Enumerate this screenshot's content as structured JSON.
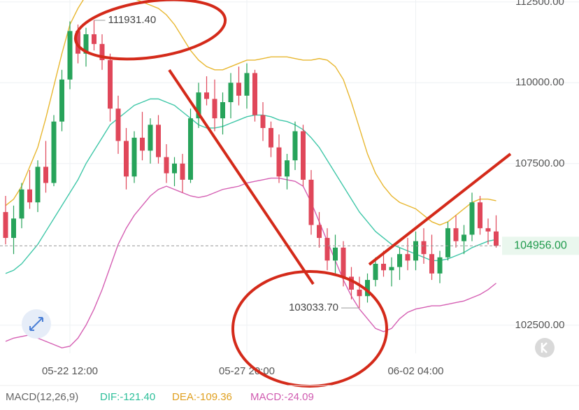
{
  "chart_data": {
    "type": "candlestick",
    "ylim": [
      101630,
      112560
    ],
    "yticks": [
      {
        "value": 112500,
        "label": "112500.00"
      },
      {
        "value": 110000,
        "label": "110000.00"
      },
      {
        "value": 107500,
        "label": "107500.00"
      },
      {
        "value": 102500,
        "label": "102500.00"
      }
    ],
    "categories": [
      null,
      null,
      null,
      null,
      null,
      null,
      null,
      null,
      "05-22 12:00",
      null,
      null,
      null,
      null,
      null,
      null,
      null,
      null,
      null,
      null,
      null,
      null,
      null,
      null,
      null,
      null,
      null,
      null,
      null,
      null,
      null,
      "05-27 20:00",
      null,
      null,
      null,
      null,
      null,
      null,
      null,
      null,
      null,
      null,
      null,
      null,
      null,
      null,
      null,
      null,
      null,
      null,
      null,
      null,
      "06-02 04:00",
      null,
      null,
      null,
      null,
      null,
      null,
      null,
      null,
      null,
      null
    ],
    "open": [
      106000,
      105200,
      105800,
      106700,
      106300,
      107400,
      106900,
      108800,
      110100,
      111600,
      110900,
      111500,
      111200,
      110700,
      109200,
      108200,
      107100,
      108300,
      107900,
      108700,
      107700,
      107200,
      107500,
      107000,
      108900,
      109700,
      109500,
      108900,
      109400,
      110000,
      109600,
      110300,
      109000,
      108600,
      108000,
      107100,
      107600,
      108500,
      107000,
      105600,
      105200,
      104500,
      104900,
      104000,
      103600,
      103400,
      103900,
      104400,
      104200,
      104300,
      104700,
      104500,
      105100,
      104700,
      104100,
      104600,
      105500,
      105100,
      105300,
      106300,
      105500,
      105400
    ],
    "high": [
      106500,
      106200,
      106900,
      107300,
      107600,
      108200,
      109000,
      110400,
      111900,
      111800,
      111700,
      111931.4,
      111500,
      110900,
      109600,
      108600,
      108500,
      109100,
      108900,
      109000,
      108100,
      107700,
      107800,
      109200,
      110000,
      110200,
      110100,
      109700,
      110300,
      110500,
      110600,
      110400,
      109400,
      108800,
      108400,
      107800,
      108800,
      108700,
      107300,
      106000,
      105500,
      105300,
      105100,
      104300,
      104000,
      104100,
      104600,
      104800,
      104600,
      104900,
      105200,
      105400,
      105500,
      105300,
      104800,
      105700,
      105900,
      105600,
      106600,
      106500,
      105800,
      105900
    ],
    "low": [
      105000,
      104700,
      105500,
      106100,
      106000,
      106600,
      106800,
      108500,
      109800,
      110600,
      110500,
      111000,
      110400,
      108800,
      107800,
      106700,
      106900,
      107600,
      107500,
      107500,
      106900,
      106800,
      106600,
      106900,
      108600,
      109300,
      108500,
      108400,
      108900,
      109300,
      109200,
      108800,
      108200,
      107700,
      106900,
      106700,
      107300,
      106800,
      105300,
      104900,
      104200,
      104100,
      103700,
      103300,
      103033.7,
      103200,
      103700,
      104000,
      103700,
      103900,
      104200,
      104200,
      104400,
      103900,
      103800,
      104500,
      104900,
      104700,
      105100,
      105300,
      105000,
      104900
    ],
    "close": [
      105200,
      105800,
      106700,
      106300,
      107400,
      106900,
      108800,
      110100,
      111600,
      110900,
      111500,
      111200,
      110700,
      109200,
      108200,
      107100,
      108300,
      107900,
      108700,
      107700,
      107200,
      107500,
      107000,
      108900,
      109700,
      109500,
      108900,
      109400,
      110000,
      109600,
      110300,
      109000,
      108600,
      108000,
      107100,
      107600,
      108500,
      107000,
      105600,
      105200,
      104500,
      104900,
      104000,
      103600,
      103400,
      103900,
      104400,
      104200,
      104300,
      104700,
      104500,
      105100,
      104700,
      104100,
      104600,
      105500,
      105100,
      105300,
      106300,
      105500,
      105400,
      104956
    ],
    "up_color": "#27a35a",
    "down_color": "#e0475a",
    "bands": [
      {
        "color": "#e8b730",
        "values": [
          106200,
          106400,
          106800,
          107400,
          108000,
          108900,
          109900,
          110900,
          111800,
          112300,
          112700,
          112900,
          113000,
          112900,
          112800,
          112700,
          112600,
          112500,
          112400,
          112300,
          112100,
          111800,
          111400,
          111000,
          110700,
          110500,
          110400,
          110400,
          110500,
          110600,
          110700,
          110700,
          110750,
          110800,
          110800,
          110800,
          110750,
          110700,
          110700,
          110750,
          110700,
          110500,
          110100,
          109400,
          108600,
          107800,
          107200,
          106800,
          106500,
          106300,
          106200,
          106100,
          105900,
          105700,
          105600,
          105700,
          105900,
          106100,
          106300,
          106400,
          106400,
          106350
        ]
      },
      {
        "color": "#3fc7a8",
        "values": [
          104100,
          104200,
          104400,
          104700,
          105000,
          105400,
          105800,
          106200,
          106600,
          107000,
          107500,
          107900,
          108300,
          108700,
          108900,
          109100,
          109300,
          109400,
          109500,
          109500,
          109400,
          109300,
          109100,
          108900,
          108700,
          108600,
          108600,
          108650,
          108750,
          108850,
          108950,
          109000,
          109000,
          108950,
          108850,
          108800,
          108700,
          108550,
          108300,
          108000,
          107600,
          107200,
          106800,
          106400,
          106000,
          105700,
          105400,
          105200,
          105000,
          104900,
          104800,
          104700,
          104600,
          104500,
          104500,
          104550,
          104650,
          104750,
          104900,
          105000,
          105100,
          105150
        ]
      },
      {
        "color": "#d55fb3",
        "values": [
          102000,
          102100,
          102150,
          102200,
          102100,
          102000,
          101900,
          101800,
          101850,
          102100,
          102500,
          103000,
          103600,
          104300,
          105000,
          105500,
          105900,
          106200,
          106500,
          106700,
          106800,
          106700,
          106600,
          106500,
          106450,
          106500,
          106600,
          106700,
          106750,
          106800,
          106900,
          106950,
          107000,
          107050,
          107050,
          107000,
          106950,
          106800,
          106300,
          105700,
          105100,
          104500,
          103900,
          103400,
          103000,
          102700,
          102400,
          102300,
          102400,
          102700,
          102900,
          103000,
          103050,
          103100,
          103100,
          103150,
          103200,
          103250,
          103350,
          103450,
          103600,
          103800
        ]
      }
    ],
    "max_label": "111931.40",
    "min_label": "103033.70",
    "last_price": {
      "value": 104956,
      "label": "104956.00"
    },
    "indicator": {
      "name": "MACD(12,26,9)",
      "dif": "DIF:-121.40",
      "dea": "DEA:-109.36",
      "macd": "MACD:-24.09"
    }
  }
}
